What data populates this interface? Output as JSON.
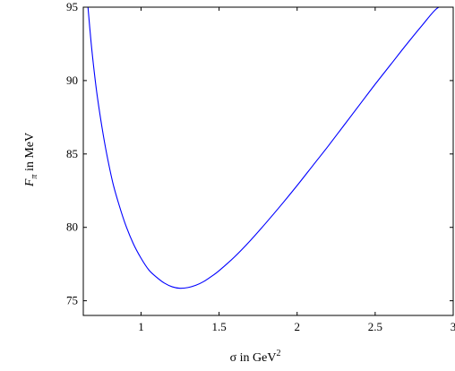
{
  "chart_data": {
    "type": "line",
    "xlabel": "σ in GeV",
    "xlabel_sup": "2",
    "ylabel_main": "F",
    "ylabel_sub": "π",
    "ylabel_rest": " in MeV",
    "xlim": [
      0.63,
      3.0
    ],
    "ylim": [
      74,
      95
    ],
    "x_ticks": [
      {
        "value": 1,
        "label": "1"
      },
      {
        "value": 1.5,
        "label": "1.5"
      },
      {
        "value": 2,
        "label": "2"
      },
      {
        "value": 2.5,
        "label": "2.5"
      },
      {
        "value": 3,
        "label": "3"
      }
    ],
    "y_ticks": [
      {
        "value": 75,
        "label": "75"
      },
      {
        "value": 80,
        "label": "80"
      },
      {
        "value": 85,
        "label": "85"
      },
      {
        "value": 90,
        "label": "90"
      },
      {
        "value": 95,
        "label": "95"
      }
    ],
    "grid": false,
    "series": [
      {
        "color": "#0000ff",
        "x": [
          0.66,
          0.68,
          0.7,
          0.72,
          0.75,
          0.78,
          0.82,
          0.86,
          0.9,
          0.95,
          1.0,
          1.05,
          1.1,
          1.15,
          1.2,
          1.25,
          1.3,
          1.35,
          1.4,
          1.45,
          1.5,
          1.6,
          1.7,
          1.8,
          1.9,
          2.0,
          2.1,
          2.2,
          2.3,
          2.4,
          2.5,
          2.6,
          2.7,
          2.8,
          2.9,
          2.97
        ],
        "y": [
          95.0,
          92.6,
          90.6,
          88.9,
          86.8,
          85.0,
          83.0,
          81.5,
          80.2,
          78.9,
          77.9,
          77.1,
          76.6,
          76.2,
          75.95,
          75.85,
          75.9,
          76.05,
          76.3,
          76.65,
          77.05,
          78.0,
          79.1,
          80.3,
          81.55,
          82.85,
          84.2,
          85.55,
          86.95,
          88.35,
          89.75,
          91.1,
          92.45,
          93.75,
          94.95,
          95.0
        ]
      }
    ]
  }
}
